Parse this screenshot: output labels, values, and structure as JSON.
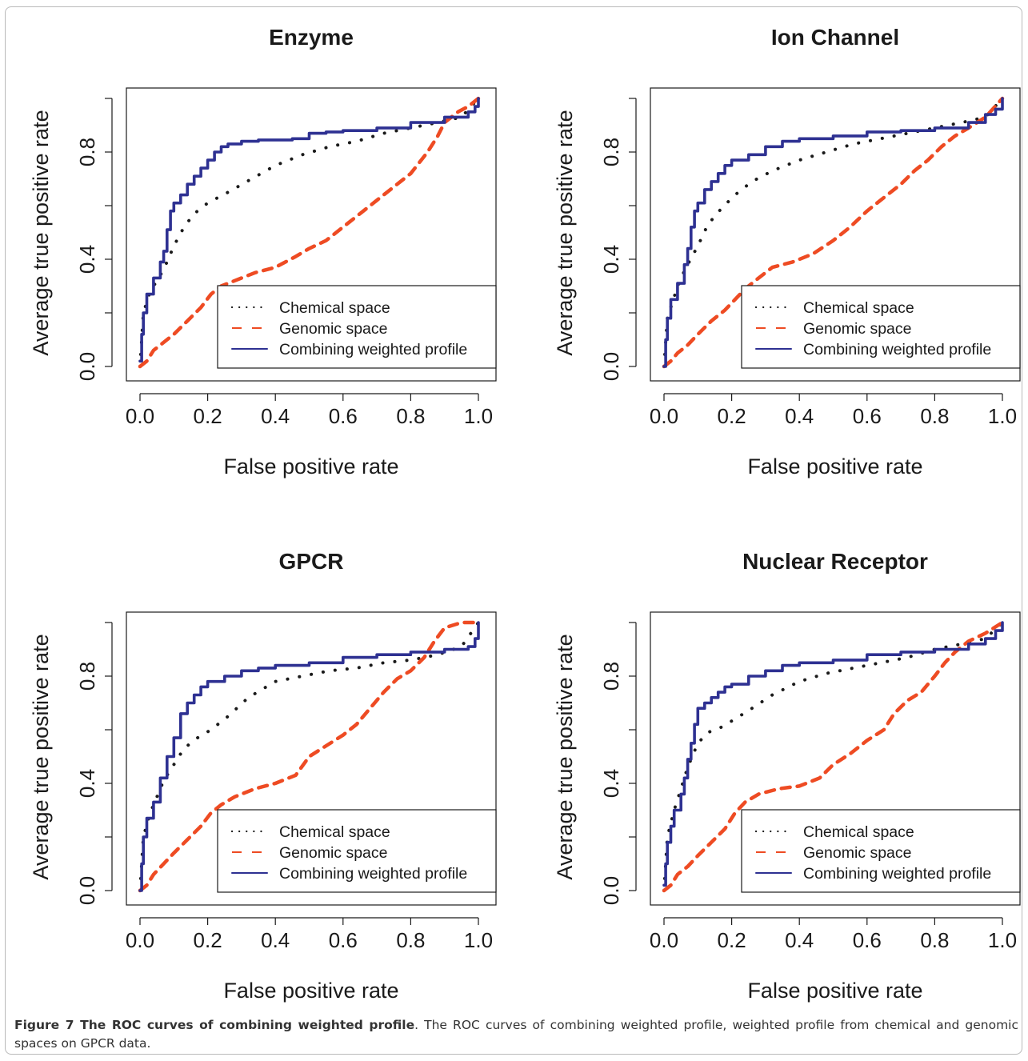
{
  "caption": {
    "label": "Figure 7",
    "bold_title": "The ROC curves of combining weighted profile",
    "text": ". The ROC curves of combining weighted profile, weighted profile from chemical and genomic spaces on GPCR data."
  },
  "colors": {
    "chemical": "#1a1a1a",
    "genomic": "#ee4b23",
    "combined": "#2e3192"
  },
  "chart_data": [
    {
      "type": "line",
      "title": "Enzyme",
      "xlabel": "False positive rate",
      "ylabel": "Average true positive rate",
      "xlim": [
        0,
        1
      ],
      "ylim": [
        0,
        1
      ],
      "xticks": [
        "0.0",
        "0.2",
        "0.4",
        "0.6",
        "0.8",
        "1.0"
      ],
      "yticks": [
        "0.0",
        "0.4",
        "0.8"
      ],
      "legend_position": "bottom-right",
      "series": [
        {
          "name": "Chemical space",
          "style": "dotted",
          "x": [
            0,
            0.01,
            0.03,
            0.06,
            0.08,
            0.1,
            0.13,
            0.16,
            0.2,
            0.26,
            0.33,
            0.4,
            0.48,
            0.56,
            0.64,
            0.72,
            0.8,
            0.88,
            0.95,
            1.0
          ],
          "y": [
            0,
            0.2,
            0.28,
            0.34,
            0.39,
            0.45,
            0.52,
            0.57,
            0.61,
            0.65,
            0.7,
            0.75,
            0.79,
            0.82,
            0.84,
            0.87,
            0.89,
            0.91,
            0.93,
            1.0
          ]
        },
        {
          "name": "Genomic space",
          "style": "dashed",
          "x": [
            0,
            0.02,
            0.04,
            0.07,
            0.1,
            0.14,
            0.18,
            0.21,
            0.24,
            0.28,
            0.34,
            0.4,
            0.46,
            0.5,
            0.55,
            0.6,
            0.65,
            0.7,
            0.75,
            0.8,
            0.85,
            0.88,
            0.9,
            0.94,
            0.97,
            1.0
          ],
          "y": [
            0,
            0.02,
            0.06,
            0.09,
            0.12,
            0.17,
            0.22,
            0.27,
            0.3,
            0.32,
            0.35,
            0.37,
            0.41,
            0.44,
            0.47,
            0.52,
            0.57,
            0.62,
            0.67,
            0.72,
            0.8,
            0.86,
            0.91,
            0.95,
            0.97,
            1.0
          ]
        },
        {
          "name": "Combining weighted profile",
          "style": "solid",
          "x": [
            0,
            0.005,
            0.01,
            0.02,
            0.04,
            0.06,
            0.07,
            0.08,
            0.09,
            0.1,
            0.12,
            0.14,
            0.16,
            0.18,
            0.2,
            0.22,
            0.24,
            0.26,
            0.3,
            0.35,
            0.45,
            0.5,
            0.55,
            0.6,
            0.7,
            0.8,
            0.9,
            0.97,
            0.99,
            1.0
          ],
          "y": [
            0.02,
            0.12,
            0.2,
            0.27,
            0.33,
            0.39,
            0.43,
            0.51,
            0.58,
            0.61,
            0.64,
            0.68,
            0.71,
            0.74,
            0.77,
            0.8,
            0.82,
            0.83,
            0.84,
            0.845,
            0.85,
            0.87,
            0.875,
            0.88,
            0.89,
            0.91,
            0.93,
            0.95,
            0.97,
            1.0
          ]
        }
      ]
    },
    {
      "type": "line",
      "title": "Ion Channel",
      "xlabel": "False positive rate",
      "ylabel": "Average true positive rate",
      "xlim": [
        0,
        1
      ],
      "ylim": [
        0,
        1
      ],
      "xticks": [
        "0.0",
        "0.2",
        "0.4",
        "0.6",
        "0.8",
        "1.0"
      ],
      "yticks": [
        "0.0",
        "0.4",
        "0.8"
      ],
      "legend_position": "bottom-right",
      "series": [
        {
          "name": "Chemical space",
          "style": "dotted",
          "x": [
            0,
            0.01,
            0.03,
            0.05,
            0.07,
            0.1,
            0.13,
            0.17,
            0.21,
            0.26,
            0.32,
            0.4,
            0.48,
            0.56,
            0.64,
            0.72,
            0.8,
            0.88,
            0.95,
            1.0
          ],
          "y": [
            0,
            0.18,
            0.26,
            0.33,
            0.38,
            0.45,
            0.53,
            0.59,
            0.64,
            0.69,
            0.73,
            0.77,
            0.8,
            0.83,
            0.85,
            0.87,
            0.89,
            0.91,
            0.93,
            1.0
          ]
        },
        {
          "name": "Genomic space",
          "style": "dashed",
          "x": [
            0,
            0.02,
            0.04,
            0.07,
            0.1,
            0.14,
            0.18,
            0.21,
            0.24,
            0.28,
            0.32,
            0.38,
            0.44,
            0.5,
            0.55,
            0.6,
            0.65,
            0.7,
            0.74,
            0.78,
            0.82,
            0.86,
            0.9,
            0.95,
            1.0
          ],
          "y": [
            0,
            0.02,
            0.05,
            0.08,
            0.12,
            0.17,
            0.21,
            0.25,
            0.29,
            0.33,
            0.37,
            0.39,
            0.42,
            0.47,
            0.52,
            0.58,
            0.63,
            0.68,
            0.73,
            0.77,
            0.82,
            0.86,
            0.89,
            0.93,
            1.0
          ]
        },
        {
          "name": "Combining weighted profile",
          "style": "solid",
          "x": [
            0,
            0.005,
            0.01,
            0.02,
            0.04,
            0.06,
            0.07,
            0.08,
            0.09,
            0.1,
            0.12,
            0.14,
            0.16,
            0.18,
            0.2,
            0.25,
            0.3,
            0.35,
            0.4,
            0.5,
            0.6,
            0.7,
            0.8,
            0.9,
            0.95,
            0.98,
            1.0
          ],
          "y": [
            0,
            0.1,
            0.18,
            0.25,
            0.31,
            0.38,
            0.44,
            0.52,
            0.58,
            0.61,
            0.66,
            0.69,
            0.72,
            0.75,
            0.77,
            0.79,
            0.82,
            0.84,
            0.85,
            0.86,
            0.875,
            0.88,
            0.89,
            0.91,
            0.94,
            0.96,
            1.0
          ]
        }
      ]
    },
    {
      "type": "line",
      "title": "GPCR",
      "xlabel": "False positive rate",
      "ylabel": "Average true positive rate",
      "xlim": [
        0,
        1
      ],
      "ylim": [
        0,
        1
      ],
      "xticks": [
        "0.0",
        "0.2",
        "0.4",
        "0.6",
        "0.8",
        "1.0"
      ],
      "yticks": [
        "0.0",
        "0.4",
        "0.8"
      ],
      "legend_position": "bottom-right",
      "series": [
        {
          "name": "Chemical space",
          "style": "dotted",
          "x": [
            0,
            0.01,
            0.03,
            0.05,
            0.07,
            0.1,
            0.13,
            0.17,
            0.21,
            0.26,
            0.32,
            0.4,
            0.48,
            0.56,
            0.64,
            0.72,
            0.8,
            0.88,
            0.95,
            1.0
          ],
          "y": [
            0,
            0.2,
            0.29,
            0.35,
            0.41,
            0.47,
            0.53,
            0.57,
            0.6,
            0.65,
            0.72,
            0.78,
            0.8,
            0.82,
            0.83,
            0.85,
            0.86,
            0.88,
            0.91,
            1.0
          ]
        },
        {
          "name": "Genomic space",
          "style": "dashed",
          "x": [
            0,
            0.02,
            0.04,
            0.07,
            0.1,
            0.14,
            0.18,
            0.21,
            0.24,
            0.28,
            0.34,
            0.4,
            0.46,
            0.5,
            0.55,
            0.6,
            0.64,
            0.68,
            0.72,
            0.76,
            0.8,
            0.84,
            0.87,
            0.9,
            0.95,
            1.0
          ],
          "y": [
            0,
            0.02,
            0.06,
            0.1,
            0.14,
            0.19,
            0.24,
            0.29,
            0.32,
            0.35,
            0.38,
            0.4,
            0.43,
            0.5,
            0.54,
            0.58,
            0.62,
            0.68,
            0.74,
            0.79,
            0.82,
            0.87,
            0.93,
            0.98,
            1.0,
            1.0
          ]
        },
        {
          "name": "Combining weighted profile",
          "style": "solid",
          "x": [
            0,
            0.005,
            0.01,
            0.02,
            0.04,
            0.06,
            0.08,
            0.1,
            0.12,
            0.14,
            0.16,
            0.18,
            0.2,
            0.25,
            0.3,
            0.35,
            0.4,
            0.5,
            0.6,
            0.7,
            0.8,
            0.9,
            0.97,
            0.99,
            1.0
          ],
          "y": [
            0,
            0.1,
            0.2,
            0.27,
            0.33,
            0.42,
            0.5,
            0.57,
            0.66,
            0.7,
            0.73,
            0.76,
            0.78,
            0.8,
            0.82,
            0.83,
            0.84,
            0.85,
            0.87,
            0.88,
            0.89,
            0.9,
            0.91,
            0.94,
            1.0
          ]
        }
      ]
    },
    {
      "type": "line",
      "title": "Nuclear Receptor",
      "xlabel": "False positive rate",
      "ylabel": "Average true positive rate",
      "xlim": [
        0,
        1
      ],
      "ylim": [
        0,
        1
      ],
      "xticks": [
        "0.0",
        "0.2",
        "0.4",
        "0.6",
        "0.8",
        "1.0"
      ],
      "yticks": [
        "0.0",
        "0.4",
        "0.8"
      ],
      "legend_position": "bottom-right",
      "series": [
        {
          "name": "Chemical space",
          "style": "dotted",
          "x": [
            0,
            0.01,
            0.03,
            0.05,
            0.07,
            0.1,
            0.13,
            0.17,
            0.21,
            0.26,
            0.32,
            0.4,
            0.48,
            0.56,
            0.64,
            0.72,
            0.8,
            0.88,
            0.95,
            1.0
          ],
          "y": [
            0,
            0.2,
            0.3,
            0.38,
            0.46,
            0.55,
            0.59,
            0.61,
            0.64,
            0.68,
            0.73,
            0.78,
            0.81,
            0.83,
            0.85,
            0.87,
            0.9,
            0.92,
            0.94,
            1.0
          ]
        },
        {
          "name": "Genomic space",
          "style": "dashed",
          "x": [
            0,
            0.02,
            0.04,
            0.07,
            0.1,
            0.14,
            0.18,
            0.21,
            0.24,
            0.28,
            0.34,
            0.4,
            0.46,
            0.5,
            0.55,
            0.6,
            0.65,
            0.68,
            0.72,
            0.76,
            0.8,
            0.83,
            0.86,
            0.9,
            0.95,
            1.0
          ],
          "y": [
            0,
            0.02,
            0.06,
            0.09,
            0.13,
            0.18,
            0.23,
            0.29,
            0.33,
            0.36,
            0.38,
            0.39,
            0.42,
            0.47,
            0.51,
            0.56,
            0.6,
            0.66,
            0.71,
            0.74,
            0.8,
            0.85,
            0.89,
            0.93,
            0.96,
            1.0
          ]
        },
        {
          "name": "Combining weighted profile",
          "style": "solid",
          "x": [
            0,
            0.005,
            0.01,
            0.02,
            0.03,
            0.05,
            0.06,
            0.07,
            0.08,
            0.09,
            0.1,
            0.12,
            0.14,
            0.16,
            0.18,
            0.2,
            0.25,
            0.3,
            0.35,
            0.4,
            0.5,
            0.6,
            0.7,
            0.8,
            0.9,
            0.95,
            0.98,
            1.0
          ],
          "y": [
            0.02,
            0.1,
            0.18,
            0.24,
            0.3,
            0.36,
            0.42,
            0.49,
            0.55,
            0.62,
            0.68,
            0.7,
            0.72,
            0.74,
            0.76,
            0.77,
            0.8,
            0.82,
            0.84,
            0.85,
            0.86,
            0.88,
            0.89,
            0.9,
            0.92,
            0.94,
            0.97,
            1.0
          ]
        }
      ]
    }
  ]
}
